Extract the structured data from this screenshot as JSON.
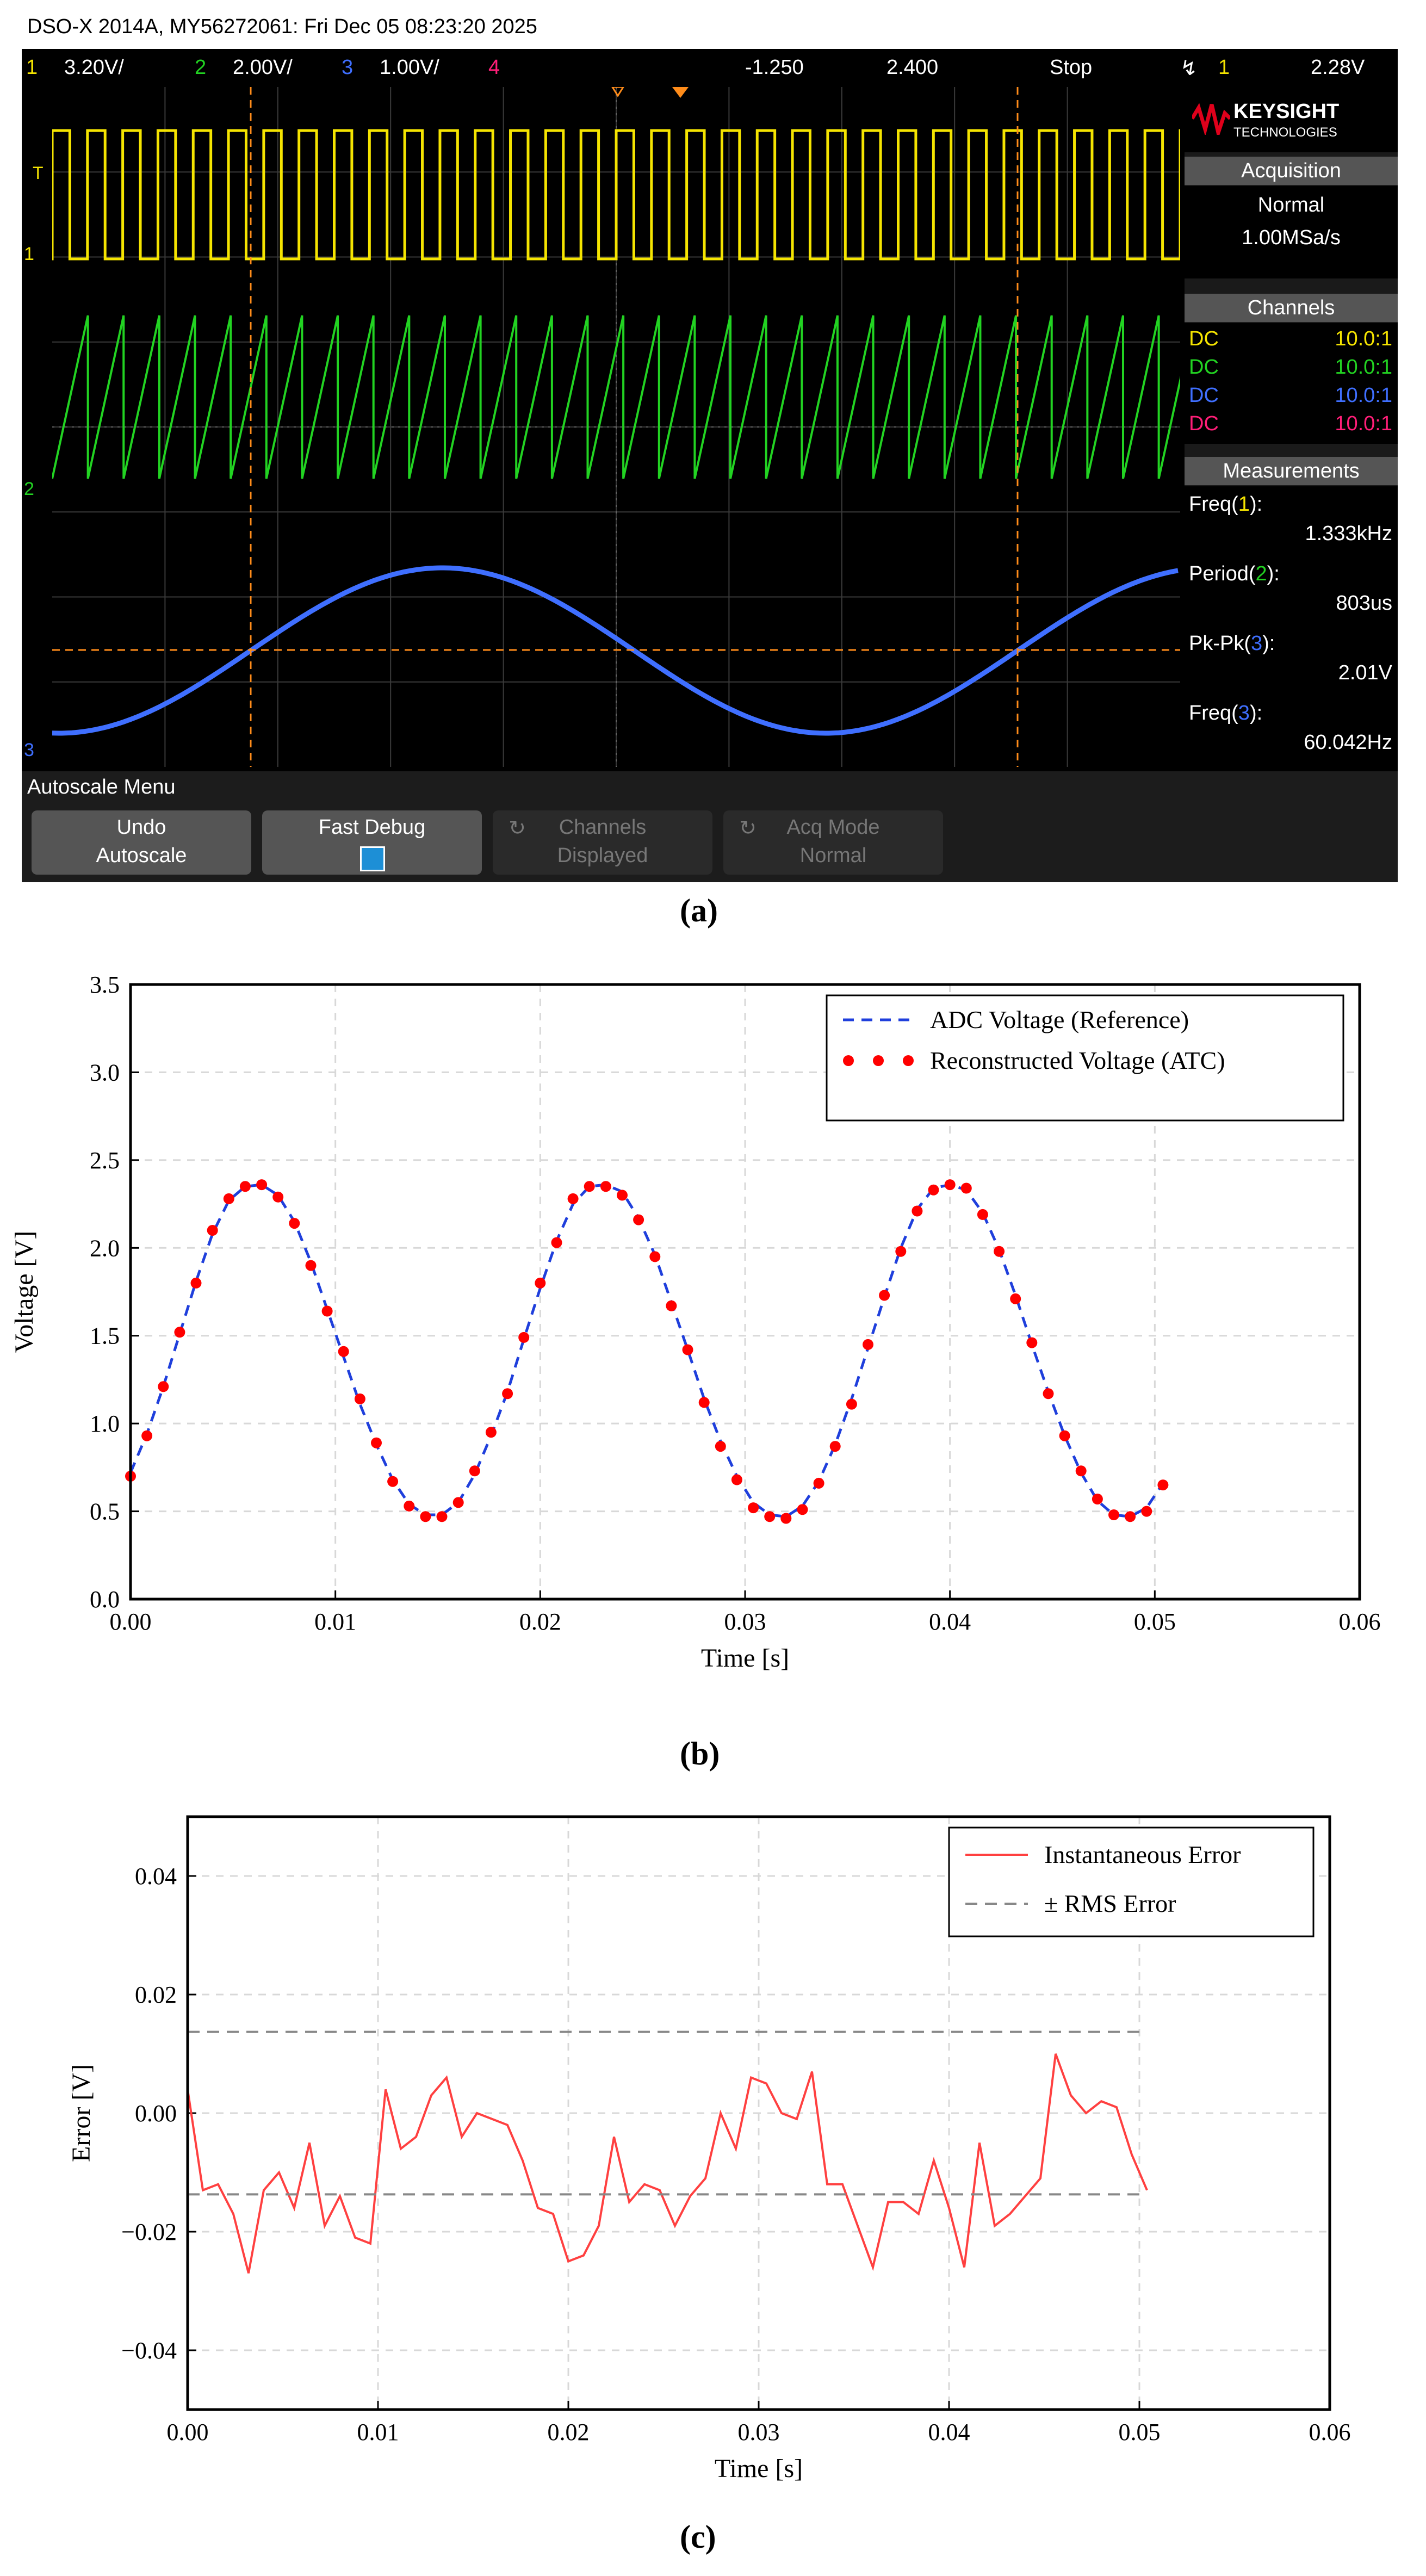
{
  "panel_labels": [
    "(a)",
    "(b)",
    "(c)"
  ],
  "scope": {
    "header": "DSO-X 2014A, MY56272061: Fri Dec 05 08:23:20 2025",
    "channels_bar": {
      "ch1_num": "1",
      "ch1_scale": "3.20V/",
      "ch2_num": "2",
      "ch2_scale": "2.00V/",
      "ch3_num": "3",
      "ch3_scale": "1.00V/",
      "ch4_num": "4",
      "time_pos": "-1.250",
      "time_scale": "2.400",
      "run_state": "Stop",
      "trigger_icon": "trigger-edge-icon",
      "trigger_source": "1",
      "trigger_level": "2.28V"
    },
    "brand_line1": "KEYSIGHT",
    "brand_line2": "TECHNOLOGIES",
    "acquisition": {
      "title": "Acquisition",
      "mode": "Normal",
      "rate": "1.00MSa/s"
    },
    "channels": {
      "title": "Channels",
      "rows": [
        {
          "coupling": "DC",
          "probe": "10.0:1",
          "color": "#f5e400"
        },
        {
          "coupling": "DC",
          "probe": "10.0:1",
          "color": "#22d322"
        },
        {
          "coupling": "DC",
          "probe": "10.0:1",
          "color": "#3f6fff"
        },
        {
          "coupling": "DC",
          "probe": "10.0:1",
          "color": "#ff1e78"
        }
      ]
    },
    "measurements": {
      "title": "Measurements",
      "items": [
        {
          "name": "Freq",
          "ch": "1",
          "value": "1.333kHz"
        },
        {
          "name": "Period",
          "ch": "2",
          "value": "803us"
        },
        {
          "name": "Pk-Pk",
          "ch": "3",
          "value": "2.01V"
        },
        {
          "name": "Freq",
          "ch": "3",
          "value": "60.042Hz"
        }
      ]
    },
    "menu": {
      "title": "Autoscale Menu",
      "buttons": [
        {
          "line1": "Undo",
          "line2": "Autoscale"
        },
        {
          "line1": "Fast Debug",
          "line2": ""
        },
        {
          "line1": "Channels",
          "line2": "Displayed"
        },
        {
          "line1": "Acq Mode",
          "line2": "Normal"
        }
      ]
    },
    "trace_colors": {
      "ch1": "#f5e400",
      "ch2": "#22d322",
      "ch3": "#3f6fff",
      "cursor": "#ff8c1a"
    },
    "ch1_level_marker": "1",
    "ch2_level_marker": "2",
    "ch3_level_marker": "3",
    "trigger_marker": "T"
  },
  "chart_data": [
    {
      "type": "line",
      "xlabel": "Time [s]",
      "ylabel": "Voltage [V]",
      "xlim": [
        0,
        0.06
      ],
      "ylim": [
        0,
        3.5
      ],
      "xticks": [
        "0.00",
        "0.01",
        "0.02",
        "0.03",
        "0.04",
        "0.05",
        "0.06"
      ],
      "yticks": [
        "0.0",
        "0.5",
        "1.0",
        "1.5",
        "2.0",
        "2.5",
        "3.0",
        "3.5"
      ],
      "grid": true,
      "legend_position": "top-right",
      "series": [
        {
          "name": "ADC Voltage (Reference)",
          "style": "dashed",
          "color": "#1f3fdc",
          "x": [
            0.0,
            0.0008,
            0.0016,
            0.0024,
            0.0032,
            0.004,
            0.0048,
            0.0056,
            0.0064,
            0.0072,
            0.008,
            0.0088,
            0.0096,
            0.0104,
            0.0112,
            0.012,
            0.0128,
            0.0136,
            0.0144,
            0.0152,
            0.016,
            0.0168,
            0.0176,
            0.0184,
            0.0192,
            0.02,
            0.0208,
            0.0216,
            0.0224,
            0.0232,
            0.024,
            0.0248,
            0.0256,
            0.0264,
            0.0272,
            0.028,
            0.0288,
            0.0296,
            0.0304,
            0.0312,
            0.032,
            0.0328,
            0.0336,
            0.0344,
            0.0352,
            0.036,
            0.0368,
            0.0376,
            0.0384,
            0.0392,
            0.04,
            0.0408,
            0.0416,
            0.0424,
            0.0432,
            0.044,
            0.0448,
            0.0456,
            0.0464,
            0.0472,
            0.048,
            0.0488,
            0.0496,
            0.0504
          ],
          "y": [
            0.72,
            0.94,
            1.21,
            1.51,
            1.81,
            2.08,
            2.27,
            2.35,
            2.36,
            2.3,
            2.15,
            1.92,
            1.65,
            1.38,
            1.11,
            0.88,
            0.68,
            0.54,
            0.48,
            0.48,
            0.55,
            0.71,
            0.93,
            1.18,
            1.48,
            1.77,
            2.04,
            2.25,
            2.35,
            2.36,
            2.32,
            2.17,
            1.96,
            1.69,
            1.42,
            1.14,
            0.9,
            0.7,
            0.55,
            0.48,
            0.47,
            0.53,
            0.67,
            0.88,
            1.14,
            1.43,
            1.72,
            2.0,
            2.22,
            2.34,
            2.36,
            2.33,
            2.2,
            1.99,
            1.73,
            1.45,
            1.18,
            0.93,
            0.72,
            0.56,
            0.48,
            0.47,
            0.52,
            0.66
          ]
        },
        {
          "name": "Reconstructed Voltage (ATC)",
          "style": "markers",
          "color": "#ff0000",
          "x": [
            0.0,
            0.0008,
            0.0016,
            0.0024,
            0.0032,
            0.004,
            0.0048,
            0.0056,
            0.0064,
            0.0072,
            0.008,
            0.0088,
            0.0096,
            0.0104,
            0.0112,
            0.012,
            0.0128,
            0.0136,
            0.0144,
            0.0152,
            0.016,
            0.0168,
            0.0176,
            0.0184,
            0.0192,
            0.02,
            0.0208,
            0.0216,
            0.0224,
            0.0232,
            0.024,
            0.0248,
            0.0256,
            0.0264,
            0.0272,
            0.028,
            0.0288,
            0.0296,
            0.0304,
            0.0312,
            0.032,
            0.0328,
            0.0336,
            0.0344,
            0.0352,
            0.036,
            0.0368,
            0.0376,
            0.0384,
            0.0392,
            0.04,
            0.0408,
            0.0416,
            0.0424,
            0.0432,
            0.044,
            0.0448,
            0.0456,
            0.0464,
            0.0472,
            0.048,
            0.0488,
            0.0496,
            0.0504
          ],
          "y": [
            0.7,
            0.93,
            1.21,
            1.52,
            1.8,
            2.1,
            2.28,
            2.35,
            2.36,
            2.29,
            2.14,
            1.9,
            1.64,
            1.41,
            1.14,
            0.89,
            0.67,
            0.53,
            0.47,
            0.47,
            0.55,
            0.73,
            0.95,
            1.17,
            1.49,
            1.8,
            2.03,
            2.28,
            2.35,
            2.35,
            2.3,
            2.16,
            1.95,
            1.67,
            1.42,
            1.12,
            0.87,
            0.68,
            0.52,
            0.47,
            0.46,
            0.51,
            0.66,
            0.87,
            1.11,
            1.45,
            1.73,
            1.98,
            2.21,
            2.33,
            2.36,
            2.34,
            2.19,
            1.98,
            1.71,
            1.46,
            1.17,
            0.93,
            0.73,
            0.57,
            0.48,
            0.47,
            0.5,
            0.65
          ]
        }
      ]
    },
    {
      "type": "line",
      "xlabel": "Time [s]",
      "ylabel": "Error [V]",
      "xlim": [
        0,
        0.06
      ],
      "ylim": [
        -0.05,
        0.05
      ],
      "xticks": [
        "0.00",
        "0.01",
        "0.02",
        "0.03",
        "0.04",
        "0.05",
        "0.06"
      ],
      "yticks": [
        "−0.04",
        "−0.02",
        "0.00",
        "0.02",
        "0.04"
      ],
      "grid": true,
      "legend_position": "top-right",
      "series": [
        {
          "name": "Instantaneous Error",
          "style": "solid",
          "color": "#ff4040",
          "x": [
            0.0,
            0.0008,
            0.0016,
            0.0024,
            0.0032,
            0.004,
            0.0048,
            0.0056,
            0.0064,
            0.0072,
            0.008,
            0.0088,
            0.0096,
            0.0104,
            0.0112,
            0.012,
            0.0128,
            0.0136,
            0.0144,
            0.0152,
            0.016,
            0.0168,
            0.0176,
            0.0184,
            0.0192,
            0.02,
            0.0208,
            0.0216,
            0.0224,
            0.0232,
            0.024,
            0.0248,
            0.0256,
            0.0264,
            0.0272,
            0.028,
            0.0288,
            0.0296,
            0.0304,
            0.0312,
            0.032,
            0.0328,
            0.0336,
            0.0344,
            0.0352,
            0.036,
            0.0368,
            0.0376,
            0.0384,
            0.0392,
            0.04,
            0.0408,
            0.0416,
            0.0424,
            0.0432,
            0.044,
            0.0448,
            0.0456,
            0.0464,
            0.0472,
            0.048,
            0.0488,
            0.0496,
            0.0504
          ],
          "y": [
            0.004,
            -0.013,
            -0.012,
            -0.017,
            -0.027,
            -0.013,
            -0.01,
            -0.016,
            -0.005,
            -0.019,
            -0.014,
            -0.021,
            -0.022,
            0.004,
            -0.006,
            -0.004,
            0.003,
            0.006,
            -0.004,
            0.0,
            -0.001,
            -0.002,
            -0.008,
            -0.016,
            -0.017,
            -0.025,
            -0.024,
            -0.019,
            -0.004,
            -0.015,
            -0.012,
            -0.013,
            -0.019,
            -0.014,
            -0.011,
            0.0,
            -0.006,
            0.006,
            0.005,
            0.0,
            -0.001,
            0.007,
            -0.012,
            -0.012,
            -0.019,
            -0.026,
            -0.015,
            -0.015,
            -0.017,
            -0.008,
            -0.016,
            -0.026,
            -0.005,
            -0.019,
            -0.017,
            -0.014,
            -0.011,
            0.01,
            0.003,
            0.0,
            0.002,
            0.001,
            -0.007,
            -0.013
          ]
        },
        {
          "name": "± RMS Error",
          "style": "dashed",
          "color": "#888888",
          "x": [
            0.0,
            0.0504
          ],
          "y_pos": 0.0137,
          "y_neg": -0.0137
        }
      ]
    }
  ]
}
